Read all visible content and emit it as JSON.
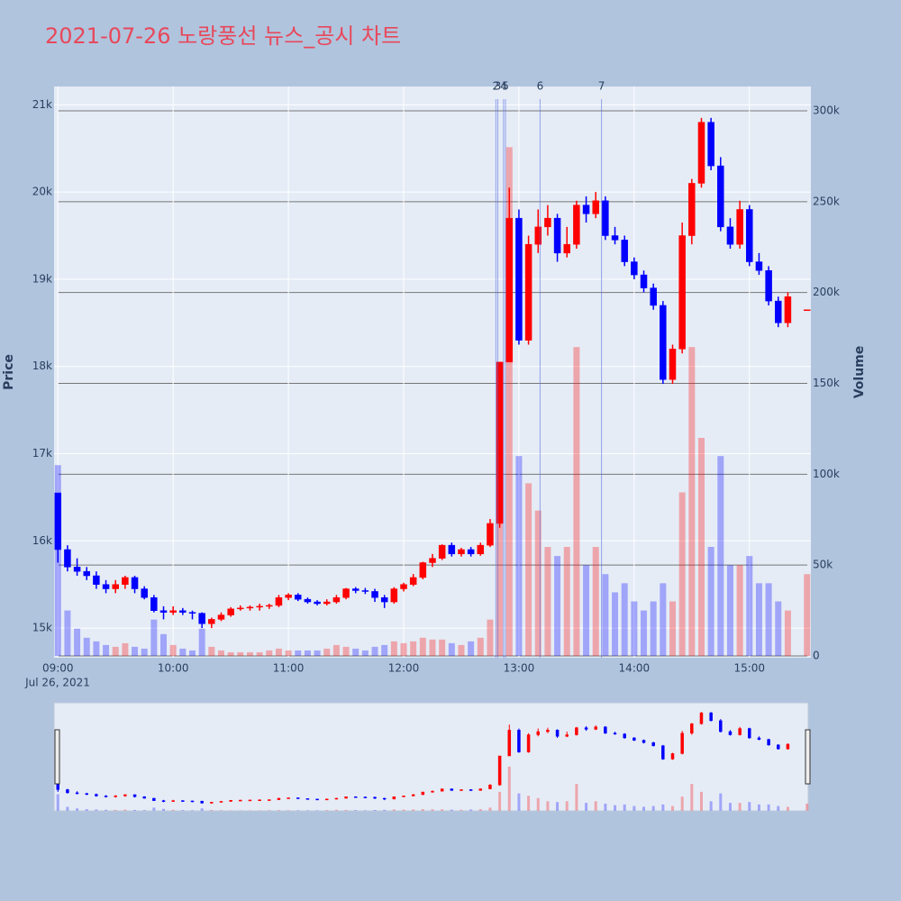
{
  "chart_data": {
    "type": "candlestick",
    "title": "2021-07-26 노랑풍선 뉴스_공시 차트",
    "y_label": "Price",
    "y2_label": "Volume",
    "x_date_label": "Jul 26, 2021",
    "increasing_color": "#ff0000",
    "decreasing_color": "#0000ff",
    "xlim": [
      "08:58",
      "15:32"
    ],
    "xticks": [
      "09:00",
      "10:00",
      "11:00",
      "12:00",
      "13:00",
      "14:00",
      "15:00"
    ],
    "ylim": [
      14660,
      21210
    ],
    "yticks": [
      {
        "value": 15000,
        "label": "15k"
      },
      {
        "value": 16000,
        "label": "16k"
      },
      {
        "value": 17000,
        "label": "17k"
      },
      {
        "value": 18000,
        "label": "18k"
      },
      {
        "value": 19000,
        "label": "19k"
      },
      {
        "value": 20000,
        "label": "20k"
      },
      {
        "value": 21000,
        "label": "21k"
      }
    ],
    "y2lim": [
      -1000,
      313400
    ],
    "y2ticks": [
      0,
      {
        "value": 50000,
        "label": "50k"
      },
      {
        "value": 100000,
        "label": "100k"
      },
      {
        "value": 150000,
        "label": "150k"
      },
      {
        "value": 200000,
        "label": "200k"
      },
      {
        "value": 250000,
        "label": "250k"
      },
      {
        "value": 300000,
        "label": "300k"
      }
    ],
    "grid": true,
    "range_slider": true,
    "annotations": [
      {
        "x": "12:48",
        "label": "2"
      },
      {
        "x": "12:49",
        "label": "3"
      },
      {
        "x": "12:52",
        "label": "4"
      },
      {
        "x": "12:53",
        "label": "5"
      },
      {
        "x": "13:11",
        "label": "6"
      },
      {
        "x": "13:43",
        "label": "7"
      }
    ],
    "x": [
      "09:00",
      "09:05",
      "09:10",
      "09:15",
      "09:20",
      "09:25",
      "09:30",
      "09:35",
      "09:40",
      "09:45",
      "09:50",
      "09:55",
      "10:00",
      "10:05",
      "10:10",
      "10:15",
      "10:20",
      "10:25",
      "10:30",
      "10:35",
      "10:40",
      "10:45",
      "10:50",
      "10:55",
      "11:00",
      "11:05",
      "11:10",
      "11:15",
      "11:20",
      "11:25",
      "11:30",
      "11:35",
      "11:40",
      "11:45",
      "11:50",
      "11:55",
      "12:00",
      "12:05",
      "12:10",
      "12:15",
      "12:20",
      "12:25",
      "12:30",
      "12:35",
      "12:40",
      "12:45",
      "12:50",
      "12:55",
      "13:00",
      "13:05",
      "13:10",
      "13:15",
      "13:20",
      "13:25",
      "13:30",
      "13:35",
      "13:40",
      "13:45",
      "13:50",
      "13:55",
      "14:00",
      "14:05",
      "14:10",
      "14:15",
      "14:20",
      "14:25",
      "14:30",
      "14:35",
      "14:40",
      "14:45",
      "14:50",
      "14:55",
      "15:00",
      "15:05",
      "15:10",
      "15:15",
      "15:20",
      "15:30"
    ],
    "open": [
      16550,
      15900,
      15700,
      15650,
      15600,
      15500,
      15450,
      15500,
      15580,
      15450,
      15350,
      15200,
      15180,
      15200,
      15180,
      15170,
      15050,
      15100,
      15150,
      15220,
      15230,
      15240,
      15250,
      15260,
      15350,
      15380,
      15330,
      15300,
      15280,
      15300,
      15350,
      15450,
      15430,
      15420,
      15350,
      15300,
      15450,
      15500,
      15580,
      15750,
      15800,
      15950,
      15850,
      15900,
      15850,
      15950,
      16200,
      18050,
      19700,
      18300,
      19400,
      19600,
      19700,
      19300,
      19400,
      19850,
      19750,
      19900,
      19500,
      19450,
      19200,
      19050,
      18900,
      18700,
      17850,
      18200,
      19500,
      20100,
      20800,
      20300,
      19600,
      19400,
      19800,
      19200,
      19100,
      18750,
      18500,
      18650
    ],
    "high": [
      16550,
      15950,
      15800,
      15700,
      15650,
      15550,
      15550,
      15600,
      15600,
      15480,
      15380,
      15250,
      15250,
      15230,
      15200,
      15180,
      15120,
      15180,
      15240,
      15260,
      15260,
      15280,
      15280,
      15380,
      15400,
      15400,
      15350,
      15320,
      15330,
      15380,
      15460,
      15470,
      15460,
      15450,
      15380,
      15470,
      15520,
      15620,
      15760,
      15850,
      15960,
      15980,
      15920,
      15930,
      15980,
      16250,
      18050,
      20050,
      19800,
      19500,
      19800,
      19850,
      19750,
      19600,
      19900,
      19950,
      20000,
      19950,
      19600,
      19500,
      19250,
      19100,
      18950,
      18750,
      18250,
      19650,
      20150,
      20850,
      20850,
      20400,
      19700,
      19900,
      19850,
      19300,
      19150,
      18800,
      18850,
      18650
    ],
    "low": [
      15750,
      15650,
      15600,
      15550,
      15450,
      15400,
      15400,
      15450,
      15400,
      15330,
      15180,
      15100,
      15150,
      15150,
      15100,
      15000,
      15000,
      15080,
      15130,
      15200,
      15200,
      15200,
      15220,
      15240,
      15320,
      15310,
      15280,
      15260,
      15260,
      15280,
      15330,
      15400,
      15390,
      15300,
      15230,
      15280,
      15420,
      15480,
      15560,
      15700,
      15780,
      15820,
      15820,
      15820,
      15830,
      15930,
      16150,
      18050,
      18250,
      18250,
      19300,
      19500,
      19200,
      19250,
      19350,
      19650,
      19700,
      19450,
      19400,
      19150,
      19000,
      18850,
      18650,
      17800,
      17800,
      18150,
      19400,
      20050,
      20250,
      19550,
      19350,
      19350,
      19150,
      19050,
      18700,
      18450,
      18450,
      18650
    ],
    "close": [
      15900,
      15700,
      15650,
      15600,
      15500,
      15450,
      15500,
      15580,
      15450,
      15350,
      15200,
      15180,
      15200,
      15180,
      15170,
      15050,
      15100,
      15150,
      15220,
      15230,
      15240,
      15250,
      15260,
      15350,
      15380,
      15330,
      15300,
      15280,
      15300,
      15350,
      15450,
      15430,
      15420,
      15350,
      15300,
      15450,
      15500,
      15580,
      15750,
      15800,
      15950,
      15850,
      15900,
      15850,
      15950,
      16200,
      18050,
      19700,
      18300,
      19400,
      19600,
      19700,
      19300,
      19400,
      19850,
      19750,
      19900,
      19500,
      19450,
      19200,
      19050,
      18900,
      18700,
      17850,
      18200,
      19500,
      20100,
      20800,
      20300,
      19600,
      19400,
      19800,
      19200,
      19100,
      18750,
      18500,
      18800,
      18650
    ],
    "volume": [
      105000,
      25000,
      15000,
      10000,
      8000,
      6000,
      5000,
      7000,
      5000,
      4000,
      20000,
      12000,
      6000,
      4000,
      3000,
      15000,
      5000,
      3000,
      2000,
      2000,
      2000,
      2000,
      3000,
      4000,
      3000,
      3000,
      3000,
      3000,
      4000,
      6000,
      5000,
      4000,
      3000,
      5000,
      6000,
      8000,
      7000,
      8000,
      10000,
      9000,
      9000,
      7000,
      6000,
      8000,
      10000,
      20000,
      120000,
      280000,
      110000,
      95000,
      80000,
      60000,
      55000,
      60000,
      170000,
      50000,
      60000,
      45000,
      35000,
      40000,
      30000,
      25000,
      30000,
      40000,
      30000,
      90000,
      170000,
      120000,
      60000,
      110000,
      50000,
      50000,
      55000,
      40000,
      40000,
      30000,
      25000,
      45000
    ]
  }
}
